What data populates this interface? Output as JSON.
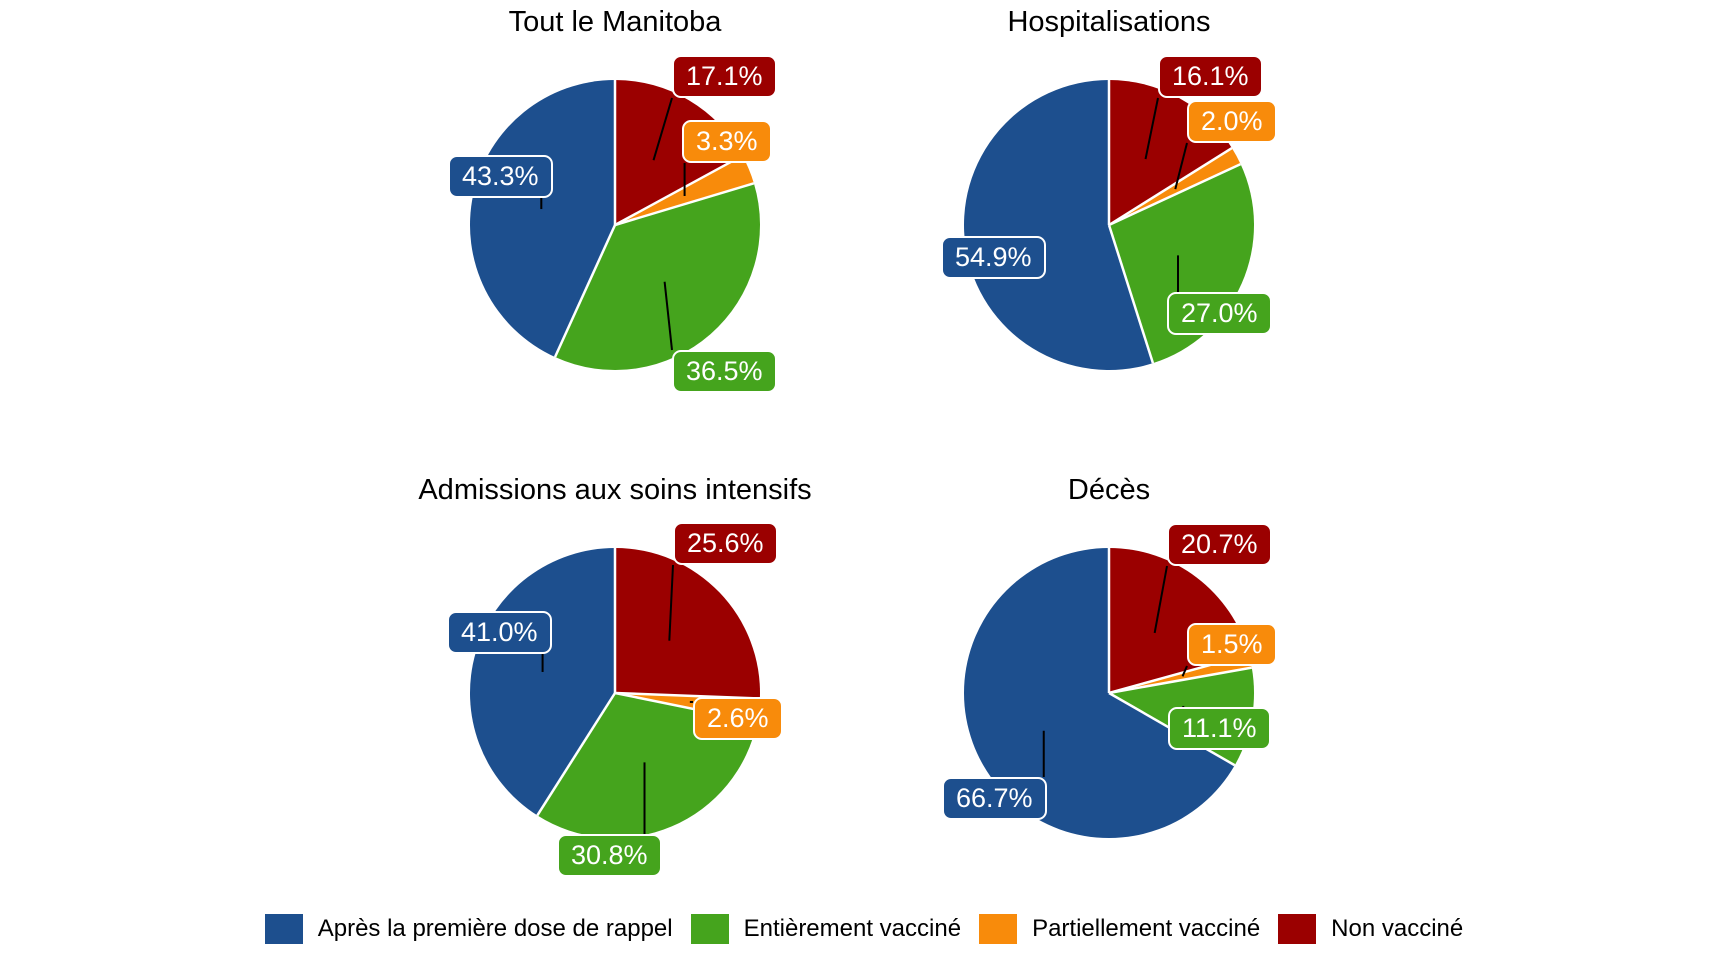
{
  "page": {
    "background": "#ffffff"
  },
  "chart_data": [
    {
      "type": "pie",
      "title": "Tout le Manitoba",
      "start_angle_deg": 0,
      "direction": "clockwise",
      "slice_order": "clockwise from 12 o'clock",
      "labels_outside": true,
      "slices": [
        {
          "name": "Non vacciné",
          "value": 17.1,
          "label": "17.1%",
          "color": "#9b0000"
        },
        {
          "name": "Partiellement vacciné",
          "value": 3.3,
          "label": "3.3%",
          "color": "#f88b0b"
        },
        {
          "name": "Entièrement vacciné",
          "value": 36.5,
          "label": "36.5%",
          "color": "#45a41d"
        },
        {
          "name": "Après la première dose de rappel",
          "value": 43.3,
          "label": "43.3%",
          "color": "#1d4f8e"
        }
      ]
    },
    {
      "type": "pie",
      "title": "Hospitalisations",
      "start_angle_deg": 0,
      "direction": "clockwise",
      "slice_order": "clockwise from 12 o'clock",
      "labels_outside": true,
      "slices": [
        {
          "name": "Non vacciné",
          "value": 16.1,
          "label": "16.1%",
          "color": "#9b0000"
        },
        {
          "name": "Partiellement vacciné",
          "value": 2.0,
          "label": "2.0%",
          "color": "#f88b0b"
        },
        {
          "name": "Entièrement vacciné",
          "value": 27.0,
          "label": "27.0%",
          "color": "#45a41d"
        },
        {
          "name": "Après la première dose de rappel",
          "value": 54.9,
          "label": "54.9%",
          "color": "#1d4f8e"
        }
      ]
    },
    {
      "type": "pie",
      "title": "Admissions aux soins intensifs",
      "start_angle_deg": 0,
      "direction": "clockwise",
      "slice_order": "clockwise from 12 o'clock",
      "labels_outside": true,
      "slices": [
        {
          "name": "Non vacciné",
          "value": 25.6,
          "label": "25.6%",
          "color": "#9b0000"
        },
        {
          "name": "Partiellement vacciné",
          "value": 2.6,
          "label": "2.6%",
          "color": "#f88b0b"
        },
        {
          "name": "Entièrement vacciné",
          "value": 30.8,
          "label": "30.8%",
          "color": "#45a41d"
        },
        {
          "name": "Après la première dose de rappel",
          "value": 41.0,
          "label": "41.0%",
          "color": "#1d4f8e"
        }
      ]
    },
    {
      "type": "pie",
      "title": "Décès",
      "start_angle_deg": 0,
      "direction": "clockwise",
      "slice_order": "clockwise from 12 o'clock",
      "labels_outside": true,
      "slices": [
        {
          "name": "Non vacciné",
          "value": 20.7,
          "label": "20.7%",
          "color": "#9b0000"
        },
        {
          "name": "Partiellement vacciné",
          "value": 1.5,
          "label": "1.5%",
          "color": "#f88b0b"
        },
        {
          "name": "Entièrement vacciné",
          "value": 11.1,
          "label": "11.1%",
          "color": "#45a41d"
        },
        {
          "name": "Après la première dose de rappel",
          "value": 66.7,
          "label": "66.7%",
          "color": "#1d4f8e"
        }
      ]
    }
  ],
  "legend": {
    "position": "bottom",
    "items": [
      {
        "label": "Après la première dose de rappel",
        "color": "#1d4f8e"
      },
      {
        "label": "Entièrement vacciné",
        "color": "#45a41d"
      },
      {
        "label": "Partiellement vacciné",
        "color": "#f88b0b"
      },
      {
        "label": "Non vacciné",
        "color": "#9b0000"
      }
    ]
  }
}
